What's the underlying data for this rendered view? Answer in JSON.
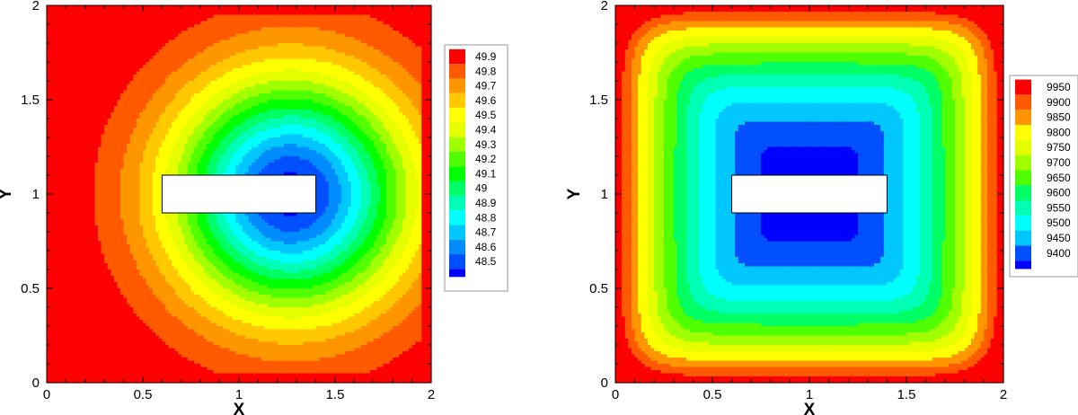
{
  "palette": [
    "#0000FF",
    "#0050FF",
    "#008CFF",
    "#00C8FF",
    "#00FFFF",
    "#00FFB4",
    "#00FF64",
    "#00FF00",
    "#50FF00",
    "#A0FF00",
    "#E6FF00",
    "#FFFF00",
    "#FFC800",
    "#FF9600",
    "#FF5A00",
    "#FF0000"
  ],
  "obstacle_color": "#FFFFFF",
  "chart_data": [
    {
      "type": "contour",
      "title": "",
      "xlabel": "X",
      "ylabel": "Y",
      "xlim": [
        0,
        2
      ],
      "ylim": [
        0,
        2
      ],
      "x_ticks": [
        "0",
        "0.5",
        "1",
        "1.5",
        "2"
      ],
      "y_ticks": [
        "0",
        "0.5",
        "1",
        "1.5",
        "2"
      ],
      "x_tick_values": [
        0,
        0.5,
        1,
        1.5,
        2
      ],
      "y_tick_values": [
        0,
        0.5,
        1,
        1.5,
        2
      ],
      "obstacle": {
        "x0": 0.6,
        "x1": 1.4,
        "y0": 0.9,
        "y1": 1.1
      },
      "legend_levels": [
        "49.9",
        "49.8",
        "49.7",
        "49.6",
        "49.5",
        "49.4",
        "49.3",
        "49.2",
        "49.1",
        "49",
        "48.9",
        "48.8",
        "48.7",
        "48.6",
        "48.5"
      ],
      "legend_position": "right",
      "field": {
        "kind": "point_sink",
        "boundary_value": 50.0,
        "min_value": 48.45,
        "center": [
          1.27,
          1.0
        ],
        "decay_x": 0.62,
        "decay_y": 0.62,
        "edge_band_width": 0.045
      }
    },
    {
      "type": "contour",
      "title": "",
      "xlabel": "X",
      "ylabel": "Y",
      "xlim": [
        0,
        2
      ],
      "ylim": [
        0,
        2
      ],
      "x_ticks": [
        "0",
        "0.5",
        "1",
        "1.5",
        "2"
      ],
      "y_ticks": [
        "0",
        "0.5",
        "1",
        "1.5",
        "2"
      ],
      "x_tick_values": [
        0,
        0.5,
        1,
        1.5,
        2
      ],
      "y_tick_values": [
        0,
        0.5,
        1,
        1.5,
        2
      ],
      "obstacle": {
        "x0": 0.6,
        "x1": 1.4,
        "y0": 0.9,
        "y1": 1.1
      },
      "legend_levels": [
        "9950",
        "9900",
        "9850",
        "9800",
        "9750",
        "9700",
        "9650",
        "9600",
        "9550",
        "9500",
        "9450",
        "9400"
      ],
      "legend_position": "right",
      "field": {
        "kind": "square_bowl",
        "boundary_value": 10000,
        "min_value": 9370,
        "center": [
          1.0,
          1.0
        ],
        "exponent": 8,
        "edge_band_width": 0.02
      }
    }
  ]
}
